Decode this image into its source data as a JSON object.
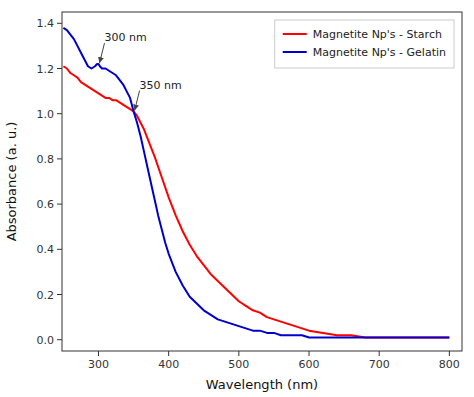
{
  "chart_data": {
    "type": "line",
    "title": "",
    "xlabel": "Wavelength (nm)",
    "ylabel": "Absorbance (a. u.)",
    "xlim": [
      248,
      818
    ],
    "ylim": [
      -0.05,
      1.45
    ],
    "xticks": [
      300,
      400,
      500,
      600,
      700,
      800
    ],
    "yticks": [
      {
        "value": 0.0,
        "label": "0.0"
      },
      0.2,
      0.4,
      0.6,
      0.8,
      {
        "value": 1.0,
        "label": "1.0"
      },
      1.2,
      1.4
    ],
    "grid": false,
    "legend": "upper right",
    "series": [
      {
        "name": "Magnetite Np's - Starch",
        "color": "#ff0000",
        "x": [
          250,
          255,
          260,
          265,
          270,
          275,
          280,
          285,
          290,
          295,
          300,
          305,
          310,
          315,
          320,
          325,
          330,
          335,
          340,
          345,
          350,
          355,
          360,
          365,
          370,
          375,
          380,
          390,
          400,
          410,
          420,
          430,
          440,
          450,
          460,
          470,
          480,
          490,
          500,
          510,
          520,
          530,
          540,
          550,
          560,
          570,
          580,
          590,
          600,
          620,
          640,
          660,
          680,
          700,
          720,
          740,
          760,
          780,
          800
        ],
        "values": [
          1.21,
          1.2,
          1.18,
          1.17,
          1.16,
          1.14,
          1.13,
          1.12,
          1.11,
          1.1,
          1.09,
          1.08,
          1.07,
          1.07,
          1.06,
          1.06,
          1.05,
          1.04,
          1.03,
          1.02,
          1.01,
          0.99,
          0.96,
          0.93,
          0.89,
          0.85,
          0.81,
          0.72,
          0.63,
          0.55,
          0.48,
          0.42,
          0.37,
          0.33,
          0.29,
          0.26,
          0.23,
          0.2,
          0.17,
          0.15,
          0.13,
          0.12,
          0.1,
          0.09,
          0.08,
          0.07,
          0.06,
          0.05,
          0.04,
          0.03,
          0.02,
          0.02,
          0.01,
          0.01,
          0.01,
          0.01,
          0.01,
          0.01,
          0.01
        ]
      },
      {
        "name": "Magnetite Np's - Gelatin",
        "color": "#0000cc",
        "x": [
          250,
          255,
          260,
          265,
          270,
          275,
          280,
          285,
          290,
          295,
          298,
          300,
          302,
          305,
          308,
          310,
          315,
          320,
          325,
          330,
          335,
          340,
          345,
          350,
          355,
          360,
          365,
          370,
          375,
          380,
          385,
          390,
          395,
          400,
          410,
          420,
          430,
          440,
          450,
          460,
          470,
          480,
          490,
          500,
          510,
          520,
          530,
          540,
          550,
          560,
          570,
          580,
          590,
          600,
          620,
          640,
          660,
          680,
          700,
          720,
          740,
          760,
          780,
          800
        ],
        "values": [
          1.38,
          1.37,
          1.35,
          1.33,
          1.3,
          1.27,
          1.24,
          1.21,
          1.2,
          1.21,
          1.22,
          1.22,
          1.21,
          1.2,
          1.2,
          1.2,
          1.19,
          1.18,
          1.17,
          1.15,
          1.13,
          1.1,
          1.07,
          1.01,
          0.96,
          0.9,
          0.83,
          0.76,
          0.69,
          0.62,
          0.55,
          0.49,
          0.43,
          0.38,
          0.3,
          0.24,
          0.19,
          0.16,
          0.13,
          0.11,
          0.09,
          0.08,
          0.07,
          0.06,
          0.05,
          0.04,
          0.04,
          0.03,
          0.03,
          0.02,
          0.02,
          0.02,
          0.02,
          0.01,
          0.01,
          0.01,
          0.01,
          0.01,
          0.01,
          0.01,
          0.01,
          0.01,
          0.01,
          0.01
        ]
      }
    ],
    "annotations": [
      {
        "text": "300 nm",
        "x": 300,
        "y": 1.215
      },
      {
        "text": "350 nm",
        "x": 350,
        "y": 1.005
      }
    ]
  }
}
